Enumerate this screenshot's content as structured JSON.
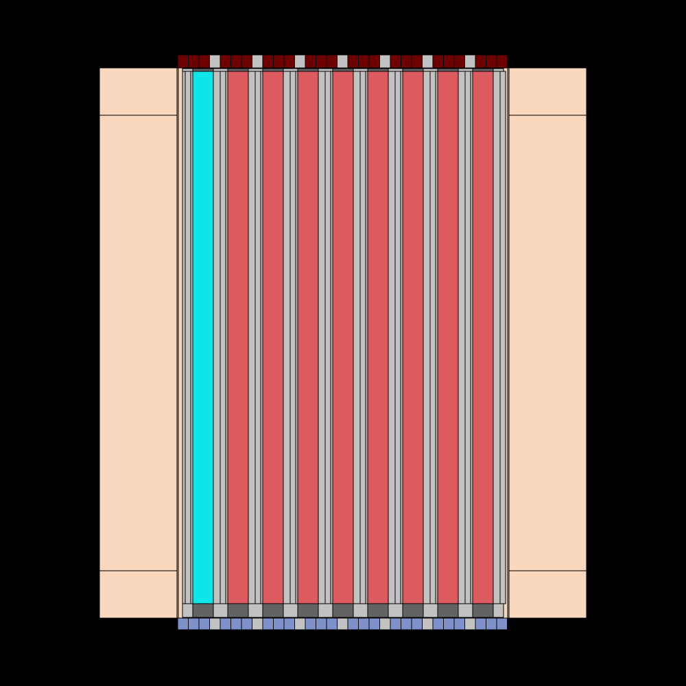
{
  "colors": {
    "background": "#000000",
    "reflector": "#F8D8BC",
    "core_frame": "#C8A890",
    "structure": "#C2C2C2",
    "fuel": "#DD5B5E",
    "control": "#0EE5E8",
    "top_plate": "#6E0000",
    "bottom_plate": "#7F91CB",
    "lower_plug": "#636363",
    "outline": "#000000"
  },
  "channels": [
    {
      "type": "control-rod"
    },
    {
      "type": "fuel-rod"
    },
    {
      "type": "fuel-rod"
    },
    {
      "type": "fuel-rod"
    },
    {
      "type": "fuel-rod"
    },
    {
      "type": "fuel-rod"
    },
    {
      "type": "fuel-rod"
    },
    {
      "type": "fuel-rod"
    },
    {
      "type": "fuel-rod"
    }
  ]
}
